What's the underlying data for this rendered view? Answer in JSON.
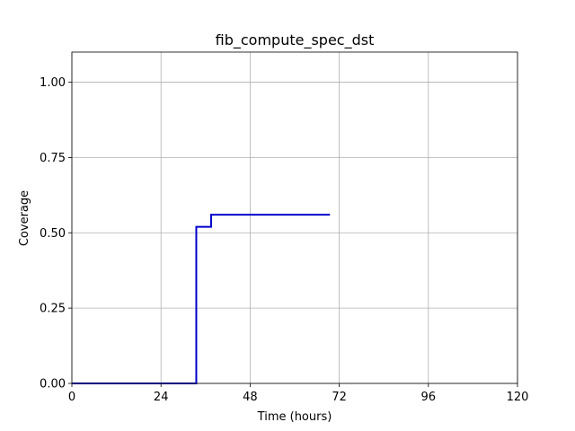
{
  "chart_data": {
    "type": "line",
    "title": "fib_compute_spec_dst",
    "xlabel": "Time (hours)",
    "ylabel": "Coverage",
    "xlim": [
      0,
      120
    ],
    "ylim": [
      0,
      1.1
    ],
    "xticks": [
      0,
      24,
      48,
      72,
      96,
      120
    ],
    "xtick_labels": [
      "0",
      "24",
      "48",
      "72",
      "96",
      "120"
    ],
    "yticks": [
      0.0,
      0.25,
      0.5,
      0.75,
      1.0
    ],
    "ytick_labels": [
      "0.00",
      "0.25",
      "0.50",
      "0.75",
      "1.00"
    ],
    "grid": true,
    "series": [
      {
        "color": "#0000cc",
        "step": "post",
        "x": [
          0,
          33.5,
          37.5,
          69.5
        ],
        "y": [
          0.0,
          0.52,
          0.56,
          0.56
        ]
      }
    ]
  }
}
